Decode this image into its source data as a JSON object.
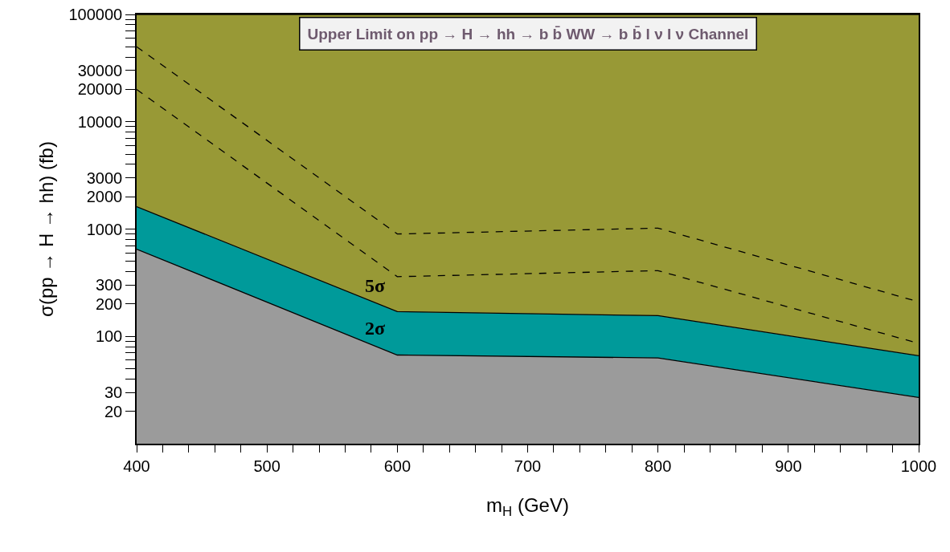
{
  "chart_data": {
    "type": "area",
    "title": "Upper Limit on pp → H → hh → b b̄ WW → b b̄ l ν l ν Channel",
    "xlabel": "m$_{H}$ (GeV)",
    "ylabel": "σ(pp → H → hh) (fb)",
    "x": [
      400,
      600,
      800,
      1000
    ],
    "series": [
      {
        "color": "#9b9b9b",
        "values": [
          650,
          67,
          63,
          27
        ]
      },
      {
        "color": "#009a9a",
        "values": [
          1620,
          170,
          156,
          66
        ]
      },
      {
        "color": "#989936",
        "values": [
          100000,
          100000,
          100000,
          100000
        ]
      },
      {
        "type": "line",
        "color": "#000000",
        "line_style": "dashed",
        "values": [
          20000,
          360,
          410,
          86
        ]
      },
      {
        "type": "line",
        "color": "#000000",
        "line_style": "dashed",
        "values": [
          50000,
          900,
          1020,
          210
        ]
      }
    ],
    "annotations": [
      "5σ",
      "2σ"
    ],
    "log": "y",
    "marker": "none",
    "xlim": [
      400,
      1000
    ],
    "xticks": [
      400,
      {
        "value": 420,
        "label": null
      },
      {
        "value": 440,
        "label": null
      },
      {
        "value": 460,
        "label": null
      },
      {
        "value": 480,
        "label": null
      },
      500,
      {
        "value": 520,
        "label": null
      },
      {
        "value": 540,
        "label": null
      },
      {
        "value": 560,
        "label": null
      },
      {
        "value": 580,
        "label": null
      },
      600,
      {
        "value": 620,
        "label": null
      },
      {
        "value": 640,
        "label": null
      },
      {
        "value": 660,
        "label": null
      },
      {
        "value": 680,
        "label": null
      },
      700,
      {
        "value": 720,
        "label": null
      },
      {
        "value": 740,
        "label": null
      },
      {
        "value": 760,
        "label": null
      },
      {
        "value": 780,
        "label": null
      },
      800,
      {
        "value": 820,
        "label": null
      },
      {
        "value": 840,
        "label": null
      },
      {
        "value": 860,
        "label": null
      },
      {
        "value": 880,
        "label": null
      },
      900,
      {
        "value": 920,
        "label": null
      },
      {
        "value": 940,
        "label": null
      },
      {
        "value": 960,
        "label": null
      },
      {
        "value": 980,
        "label": null
      },
      1000
    ],
    "ylim": [
      10,
      100000
    ],
    "yticks": [
      20,
      30,
      {
        "value": 40,
        "label": null
      },
      {
        "value": 50,
        "label": null
      },
      {
        "value": 60,
        "label": null
      },
      {
        "value": 70,
        "label": null
      },
      {
        "value": 80,
        "label": null
      },
      {
        "value": 90,
        "label": null
      },
      100,
      200,
      300,
      {
        "value": 400,
        "label": null
      },
      {
        "value": 500,
        "label": null
      },
      {
        "value": 600,
        "label": null
      },
      {
        "value": 700,
        "label": null
      },
      {
        "value": 800,
        "label": null
      },
      {
        "value": 900,
        "label": null
      },
      1000,
      2000,
      3000,
      {
        "value": 4000,
        "label": null
      },
      {
        "value": 5000,
        "label": null
      },
      {
        "value": 6000,
        "label": null
      },
      {
        "value": 7000,
        "label": null
      },
      {
        "value": 8000,
        "label": null
      },
      {
        "value": 9000,
        "label": null
      },
      10000,
      20000,
      30000,
      {
        "value": 40000,
        "label": null
      },
      {
        "value": 50000,
        "label": null
      },
      {
        "value": 60000,
        "label": null
      },
      {
        "value": 70000,
        "label": null
      },
      {
        "value": 80000,
        "label": null
      },
      {
        "value": 90000,
        "label": null
      },
      100000
    ]
  }
}
